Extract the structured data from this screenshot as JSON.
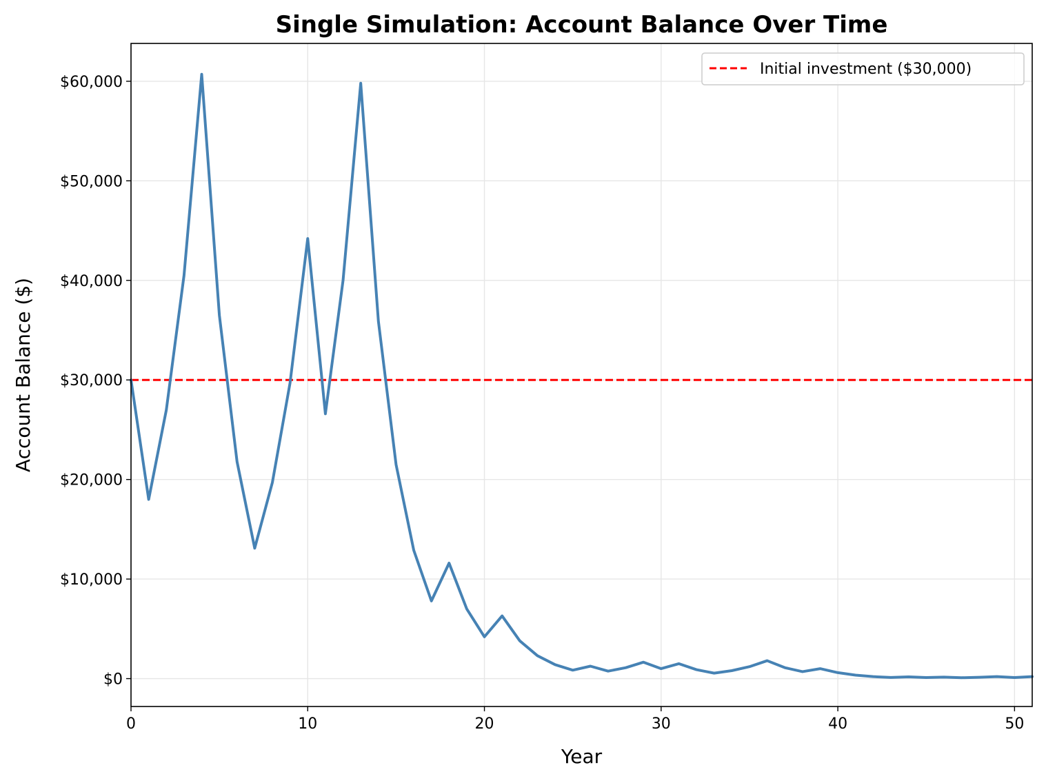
{
  "colors": {
    "series": "#4682b4",
    "reference": "#ff0000",
    "grid": "#e6e6e6"
  },
  "chart_data": {
    "type": "line",
    "title": "Single Simulation: Account Balance Over Time",
    "xlabel": "Year",
    "ylabel": "Account Balance ($)",
    "xlim": [
      0,
      51
    ],
    "ylim": [
      -2800,
      63800
    ],
    "grid": true,
    "legend_position": "top-right",
    "x_ticks": [
      0,
      10,
      20,
      30,
      40,
      50
    ],
    "x_tick_labels": [
      "0",
      "10",
      "20",
      "30",
      "40",
      "50"
    ],
    "y_ticks": [
      0,
      10000,
      20000,
      30000,
      40000,
      50000,
      60000
    ],
    "y_tick_labels": [
      "$0",
      "$10,000",
      "$20,000",
      "$30,000",
      "$40,000",
      "$50,000",
      "$60,000"
    ],
    "series": [
      {
        "x": [
          0,
          1,
          2,
          3,
          4,
          5,
          6,
          7,
          8,
          9,
          10,
          11,
          12,
          13,
          14,
          15,
          16,
          17,
          18,
          19,
          20,
          21,
          22,
          23,
          24,
          25,
          26,
          27,
          28,
          29,
          30,
          31,
          32,
          33,
          34,
          35,
          36,
          37,
          38,
          39,
          40,
          41,
          42,
          43,
          44,
          45,
          46,
          47,
          48,
          49,
          50,
          51
        ],
        "values": [
          30000,
          18000,
          27000,
          40500,
          60700,
          36500,
          21800,
          13100,
          19700,
          29700,
          44200,
          26600,
          40000,
          59800,
          35900,
          21500,
          12900,
          7800,
          11600,
          7000,
          4200,
          6300,
          3800,
          2300,
          1400,
          850,
          1250,
          750,
          1100,
          1650,
          1000,
          1500,
          900,
          550,
          800,
          1200,
          1800,
          1100,
          700,
          1000,
          600,
          350,
          200,
          120,
          180,
          110,
          150,
          90,
          130,
          200,
          110,
          200
        ]
      },
      {
        "name": "Initial investment ($30,000)",
        "style": "dashed",
        "value": 30000
      }
    ]
  }
}
